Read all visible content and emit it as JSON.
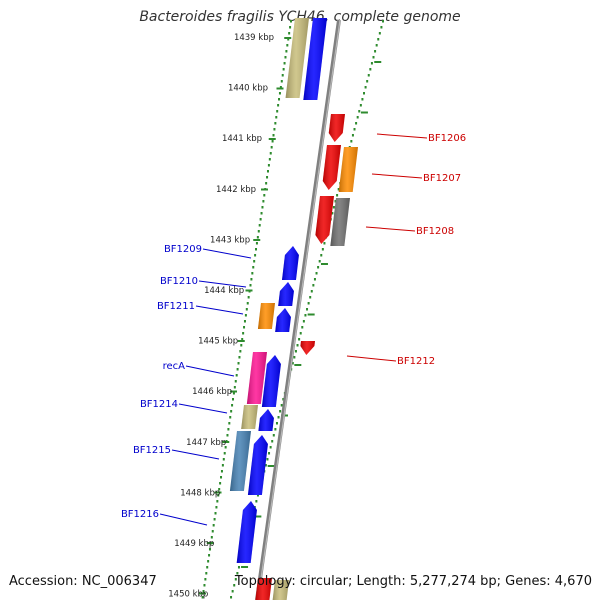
{
  "title": "Bacteroides fragilis YCH46, complete genome",
  "accession": "Accession: NC_006347",
  "topology": "Topology: circular; Length: 5,277,274 bp; Genes: 4,670",
  "colors": {
    "backbone": "#808080",
    "track_ticks": "#2e8b2e",
    "label_right": "#cc0000",
    "label_left": "#0000cc",
    "blue": "#0000ff",
    "red": "#ee0000",
    "orange": "#ff8c00",
    "gray": "#707070",
    "khaki": "#c8bd7a",
    "pink": "#ff1493",
    "steel": "#4682b4"
  },
  "scale_labels": [
    "1439 kbp",
    "1440 kbp",
    "1441 kbp",
    "1442 kbp",
    "1443 kbp",
    "1444 kbp",
    "1445 kbp",
    "1446 kbp",
    "1447 kbp",
    "1448 kbp",
    "1449 kbp",
    "1450 kbp"
  ],
  "gene_labels_right": [
    "BF1206",
    "BF1207",
    "BF1208",
    "BF1212"
  ],
  "gene_labels_left": [
    "BF1209",
    "BF1210",
    "BF1211",
    "recA",
    "BF1214",
    "BF1215",
    "BF1216"
  ]
}
